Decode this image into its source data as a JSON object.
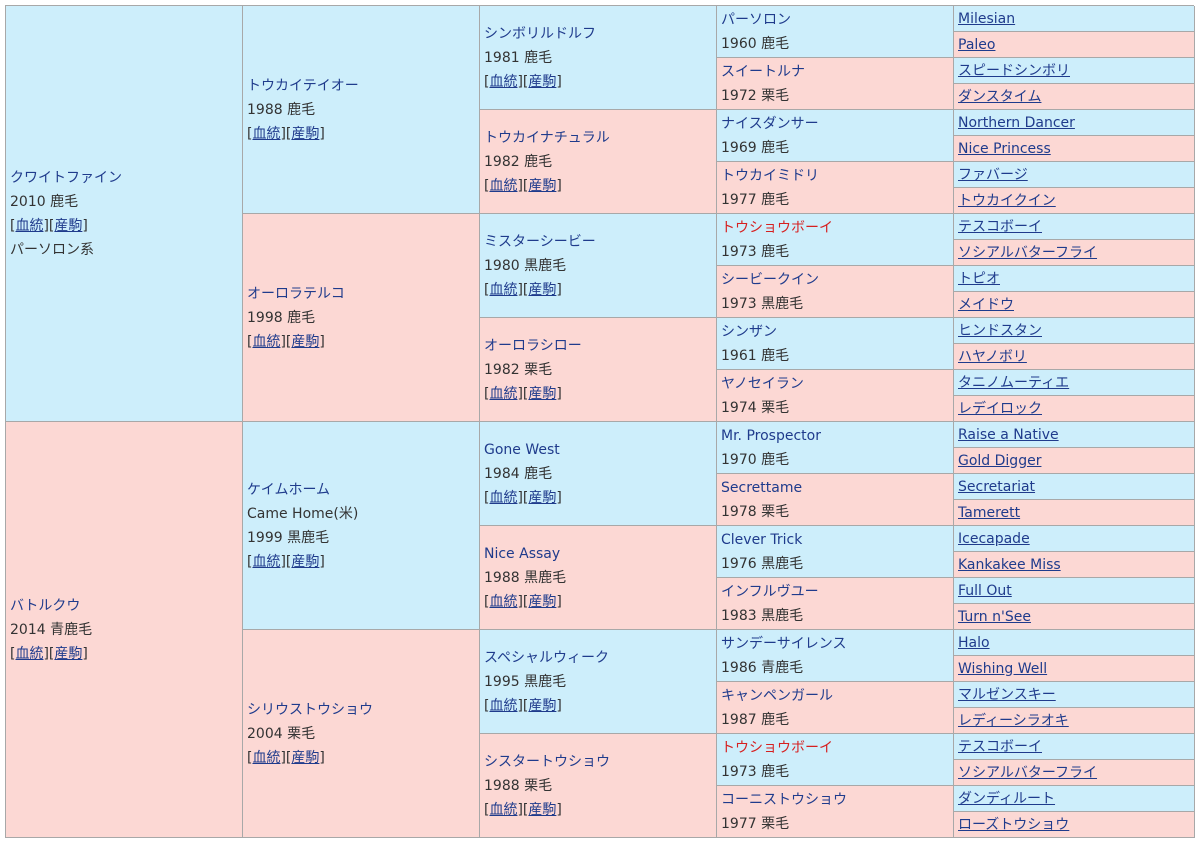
{
  "link_sire": "血統",
  "link_foal": "産駒",
  "g1": [
    {
      "name": "クワイトファイン",
      "info": "2010 鹿毛",
      "extra": "パーソロン系",
      "links": true
    },
    {
      "name": "バトルクウ",
      "info": "2014 青鹿毛",
      "links": true
    }
  ],
  "g2": [
    {
      "name": "トウカイテイオー",
      "info": "1988 鹿毛",
      "links": true
    },
    {
      "name": "オーロラテルコ",
      "info": "1998 鹿毛",
      "links": true
    },
    {
      "name": "ケイムホーム",
      "alt": "Came Home(米)",
      "info": "1999 黒鹿毛",
      "links": true
    },
    {
      "name": "シリウストウショウ",
      "info": "2004 栗毛",
      "links": true
    }
  ],
  "g3": [
    {
      "name": "シンボリルドルフ",
      "info": "1981 鹿毛",
      "links": true
    },
    {
      "name": "トウカイナチュラル",
      "info": "1982 鹿毛",
      "links": true
    },
    {
      "name": "ミスターシービー",
      "info": "1980 黒鹿毛",
      "links": true
    },
    {
      "name": "オーロラシロー",
      "info": "1982 栗毛",
      "links": true
    },
    {
      "name": "Gone West",
      "info": "1984 鹿毛",
      "links": true
    },
    {
      "name": "Nice Assay",
      "info": "1988 黒鹿毛",
      "links": true
    },
    {
      "name": "スペシャルウィーク",
      "info": "1995 黒鹿毛",
      "links": true
    },
    {
      "name": "シスタートウショウ",
      "info": "1988 栗毛",
      "links": true
    }
  ],
  "g4": [
    {
      "name": "パーソロン",
      "info": "1960 鹿毛"
    },
    {
      "name": "スイートルナ",
      "info": "1972 栗毛"
    },
    {
      "name": "ナイスダンサー",
      "info": "1969 鹿毛"
    },
    {
      "name": "トウカイミドリ",
      "info": "1977 鹿毛"
    },
    {
      "name": "トウショウボーイ",
      "info": "1973 鹿毛",
      "red": true
    },
    {
      "name": "シービークイン",
      "info": "1973 黒鹿毛"
    },
    {
      "name": "シンザン",
      "info": "1961 鹿毛"
    },
    {
      "name": "ヤノセイラン",
      "info": "1974 栗毛"
    },
    {
      "name": "Mr. Prospector",
      "info": "1970 鹿毛"
    },
    {
      "name": "Secrettame",
      "info": "1978 栗毛"
    },
    {
      "name": "Clever Trick",
      "info": "1976 黒鹿毛"
    },
    {
      "name": "インフルヴユー",
      "info": "1983 黒鹿毛"
    },
    {
      "name": "サンデーサイレンス",
      "info": "1986 青鹿毛"
    },
    {
      "name": "キャンペンガール",
      "info": "1987 鹿毛"
    },
    {
      "name": "トウショウボーイ",
      "info": "1973 鹿毛",
      "red": true
    },
    {
      "name": "コーニストウショウ",
      "info": "1977 栗毛"
    }
  ],
  "g5": [
    "Milesian",
    "Paleo",
    "スピードシンボリ",
    "ダンスタイム",
    "Northern Dancer",
    "Nice Princess",
    "ファバージ",
    "トウカイクイン",
    "テスコボーイ",
    "ソシアルバターフライ",
    "トピオ",
    "メイドウ",
    "ヒンドスタン",
    "ハヤノボリ",
    "タニノムーティエ",
    "レデイロック",
    "Raise a Native",
    "Gold Digger",
    "Secretariat",
    "Tamerett",
    "Icecapade",
    "Kankakee Miss",
    "Full Out",
    "Turn n'See",
    "Halo",
    "Wishing Well",
    "マルゼンスキー",
    "レディーシラオキ",
    "テスコボーイ",
    "ソシアルバターフライ",
    "ダンディルート",
    "ローズトウショウ"
  ]
}
